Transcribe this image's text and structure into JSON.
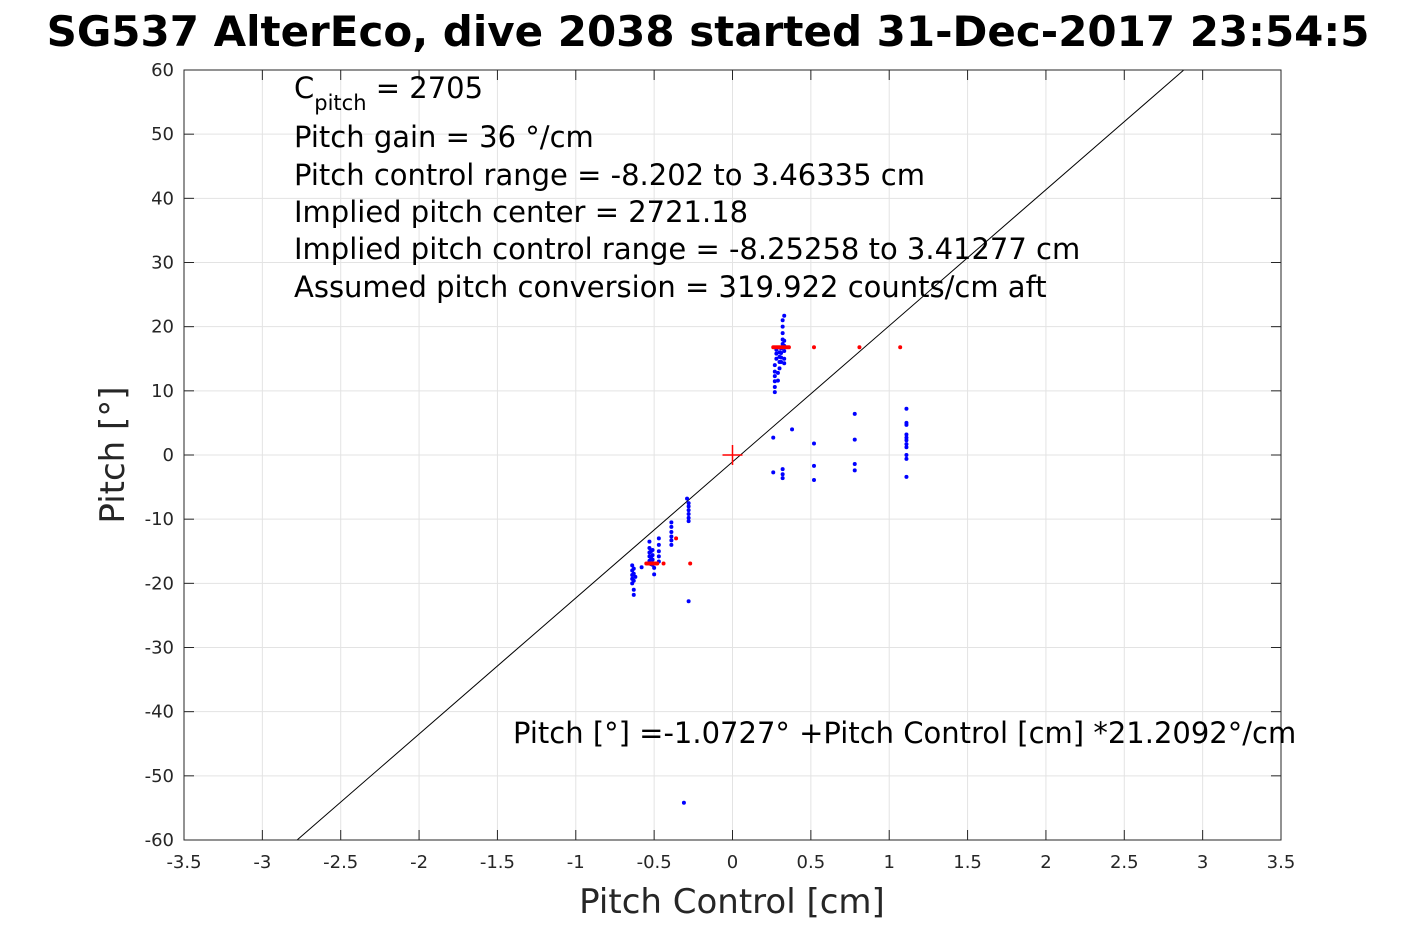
{
  "chart_data": {
    "type": "scatter",
    "title": "SG537 AlterEco, dive 2038 started 31-Dec-2017 23:54:5",
    "xlabel": "Pitch Control [cm]",
    "ylabel": "Pitch [°]",
    "xlim": [
      -3.5,
      3.5
    ],
    "ylim": [
      -60,
      60
    ],
    "xticks": [
      -3.5,
      -3,
      -2.5,
      -2,
      -1.5,
      -1,
      -0.5,
      0,
      0.5,
      1,
      1.5,
      2,
      2.5,
      3,
      3.5
    ],
    "xtick_labels": [
      "-3.5",
      "-3",
      "-2.5",
      "-2",
      "-1.5",
      "-1",
      "-0.5",
      "0",
      "0.5",
      "1",
      "1.5",
      "2",
      "2.5",
      "3",
      "3.5"
    ],
    "yticks": [
      -60,
      -50,
      -40,
      -30,
      -20,
      -10,
      0,
      10,
      20,
      30,
      40,
      50,
      60
    ],
    "ytick_labels": [
      "-60",
      "-50",
      "-40",
      "-30",
      "-20",
      "-10",
      "0",
      "10",
      "20",
      "30",
      "40",
      "50",
      "60"
    ],
    "grid": true,
    "annotations": {
      "c_pitch_main": "C",
      "c_pitch_sub": "pitch",
      "c_pitch_value": " = 2705",
      "pitch_gain": "Pitch gain = 36 °/cm",
      "control_range": "Pitch control range = -8.202 to 3.46335 cm",
      "implied_center": "Implied pitch center = 2721.18",
      "implied_range": "Implied pitch control range = -8.25258 to 3.41277 cm",
      "conversion": "Assumed pitch conversion = 319.922 counts/cm aft",
      "fit_equation": "Pitch [°] =-1.0727° +Pitch Control [cm] *21.2092°/cm"
    },
    "series": [
      {
        "color": "#0000ff",
        "x": [
          -0.64,
          -0.64,
          -0.64,
          -0.64,
          -0.64,
          -0.63,
          -0.63,
          -0.63,
          -0.63,
          -0.63,
          -0.62,
          -0.58,
          -0.53,
          -0.53,
          -0.53,
          -0.53,
          -0.53,
          -0.52,
          -0.52,
          -0.52,
          -0.51,
          -0.51,
          -0.51,
          -0.51,
          -0.5,
          -0.5,
          -0.47,
          -0.47,
          -0.47,
          -0.47,
          -0.47,
          -0.39,
          -0.39,
          -0.39,
          -0.39,
          -0.39,
          -0.39,
          -0.29,
          -0.28,
          -0.28,
          -0.28,
          -0.28,
          -0.28,
          -0.28,
          -0.28,
          -0.31,
          0.27,
          0.27,
          0.27,
          0.27,
          0.27,
          0.27,
          0.28,
          0.28,
          0.28,
          0.29,
          0.29,
          0.3,
          0.3,
          0.3,
          0.3,
          0.31,
          0.31,
          0.31,
          0.31,
          0.32,
          0.32,
          0.32,
          0.32,
          0.32,
          0.33,
          0.33,
          0.33,
          0.33,
          0.33,
          0.33,
          0.26,
          0.26,
          0.32,
          0.32,
          0.32,
          0.38,
          0.52,
          0.52,
          0.52,
          0.78,
          0.78,
          0.78,
          0.78,
          1.11,
          1.11,
          1.11,
          1.11,
          1.11,
          1.11,
          1.11,
          1.11,
          1.11,
          1.11,
          1.11
        ],
        "y": [
          -17.2,
          -18.0,
          -18.7,
          -19.3,
          -20.0,
          -21.0,
          -21.8,
          -18.5,
          -19.6,
          -17.7,
          -19.0,
          -17.5,
          -13.5,
          -14.5,
          -15.2,
          -15.8,
          -16.5,
          -17.0,
          -15.0,
          -16.0,
          -14.8,
          -15.6,
          -16.3,
          -17.1,
          -17.6,
          -18.6,
          -13.0,
          -14.0,
          -15.0,
          -15.8,
          -16.6,
          -10.5,
          -11.2,
          -12.0,
          -12.7,
          -13.3,
          -14.0,
          -6.8,
          -7.5,
          -8.0,
          -8.6,
          -9.2,
          -9.8,
          -10.3,
          -22.8,
          -54.2,
          9.8,
          10.6,
          11.5,
          12.3,
          13.0,
          14.0,
          15.0,
          15.8,
          16.4,
          11.6,
          12.8,
          13.5,
          14.5,
          15.3,
          16.0,
          14.5,
          15.2,
          15.9,
          16.6,
          17.3,
          18.0,
          19.0,
          20.0,
          21.0,
          21.7,
          15.0,
          16.2,
          17.0,
          17.8,
          14.3,
          2.7,
          -2.7,
          -2.2,
          -3.0,
          -3.6,
          4.0,
          1.8,
          -1.7,
          -3.9,
          6.4,
          2.4,
          -1.4,
          -2.4,
          7.2,
          5.0,
          4.7,
          3.2,
          2.7,
          2.3,
          1.7,
          1.2,
          0.0,
          -0.6,
          -3.4
        ],
        "dot_radius": 2
      },
      {
        "color": "#ff0000",
        "x": [
          -0.55,
          -0.54,
          -0.53,
          -0.52,
          -0.51,
          -0.5,
          -0.49,
          -0.48,
          -0.44,
          -0.36,
          -0.27,
          0.26,
          0.27,
          0.28,
          0.29,
          0.3,
          0.31,
          0.32,
          0.33,
          0.34,
          0.35,
          0.36,
          0.52,
          0.81,
          1.07
        ],
        "y": [
          -16.9,
          -16.9,
          -16.9,
          -16.9,
          -16.9,
          -16.9,
          -16.9,
          -16.9,
          -16.9,
          -13.0,
          -16.9,
          16.8,
          16.8,
          16.8,
          16.8,
          16.8,
          16.8,
          16.8,
          16.8,
          16.8,
          16.8,
          16.8,
          16.8,
          16.8,
          16.8
        ],
        "dot_radius": 2
      }
    ],
    "fit_line": {
      "intercept": -1.0727,
      "slope": 21.2092,
      "color": "#000000"
    },
    "center_marker": {
      "x": 0,
      "y": 0,
      "color": "#ff0000"
    }
  }
}
